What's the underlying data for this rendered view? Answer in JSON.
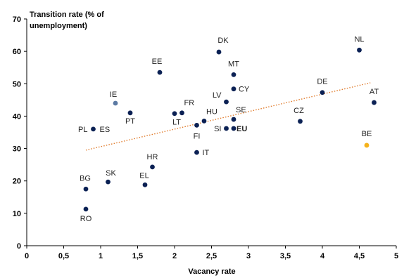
{
  "chart_data": {
    "type": "scatter",
    "title": "",
    "ylabel": "Transition rate (% of unemployment)",
    "ylabel_lines": [
      "Transition rate (% of",
      "unemployment)"
    ],
    "xlabel": "Vacancy rate",
    "xlim": [
      0,
      5
    ],
    "ylim": [
      0,
      70
    ],
    "xticks": [
      "0",
      "0,5",
      "1",
      "1,5",
      "2",
      "2,5",
      "3",
      "3,5",
      "4",
      "4,5",
      "5"
    ],
    "yticks": [
      "0",
      "10",
      "20",
      "30",
      "40",
      "50",
      "60",
      "70"
    ],
    "grid": false,
    "colors": {
      "point": "#0b2154",
      "highlight": "#f5b21b",
      "trend": "#e07a2a",
      "ie_point": "#5b7aa3"
    },
    "points": [
      {
        "label": "DK",
        "x": 2.6,
        "y": 59.8
      },
      {
        "label": "NL",
        "x": 4.5,
        "y": 60.4
      },
      {
        "label": "EE",
        "x": 1.8,
        "y": 53.5
      },
      {
        "label": "MT",
        "x": 2.8,
        "y": 52.8
      },
      {
        "label": "CY",
        "x": 2.8,
        "y": 48.4
      },
      {
        "label": "DE",
        "x": 4.0,
        "y": 47.3
      },
      {
        "label": "LV",
        "x": 2.7,
        "y": 44.4
      },
      {
        "label": "AT",
        "x": 4.7,
        "y": 44.2
      },
      {
        "label": "IE",
        "x": 1.2,
        "y": 44.0,
        "color": "ie_point"
      },
      {
        "label": "PT",
        "x": 1.4,
        "y": 41.0
      },
      {
        "label": "FR",
        "x": 2.1,
        "y": 41.0
      },
      {
        "label": "LT",
        "x": 2.0,
        "y": 40.8
      },
      {
        "label": "SE",
        "x": 2.8,
        "y": 39.0
      },
      {
        "label": "HU",
        "x": 2.4,
        "y": 38.5
      },
      {
        "label": "CZ",
        "x": 3.7,
        "y": 38.4
      },
      {
        "label": "FI",
        "x": 2.3,
        "y": 37.2
      },
      {
        "label": "SI",
        "x": 2.7,
        "y": 36.2
      },
      {
        "label": "EU",
        "x": 2.8,
        "y": 36.2,
        "bold": true
      },
      {
        "label": "PL",
        "x": 0.9,
        "y": 36.0
      },
      {
        "label": "ES",
        "x": 0.9,
        "y": 36.0
      },
      {
        "label": "BE",
        "x": 4.6,
        "y": 31.0,
        "color": "highlight"
      },
      {
        "label": "IT",
        "x": 2.3,
        "y": 28.8
      },
      {
        "label": "HR",
        "x": 1.7,
        "y": 24.3
      },
      {
        "label": "SK",
        "x": 1.1,
        "y": 19.7
      },
      {
        "label": "EL",
        "x": 1.6,
        "y": 18.8
      },
      {
        "label": "BG",
        "x": 0.8,
        "y": 17.5
      },
      {
        "label": "RO",
        "x": 0.8,
        "y": 11.3
      }
    ],
    "trendline": {
      "x": [
        0.8,
        4.65
      ],
      "y": [
        29.5,
        50.3
      ],
      "style": "dotted"
    }
  }
}
